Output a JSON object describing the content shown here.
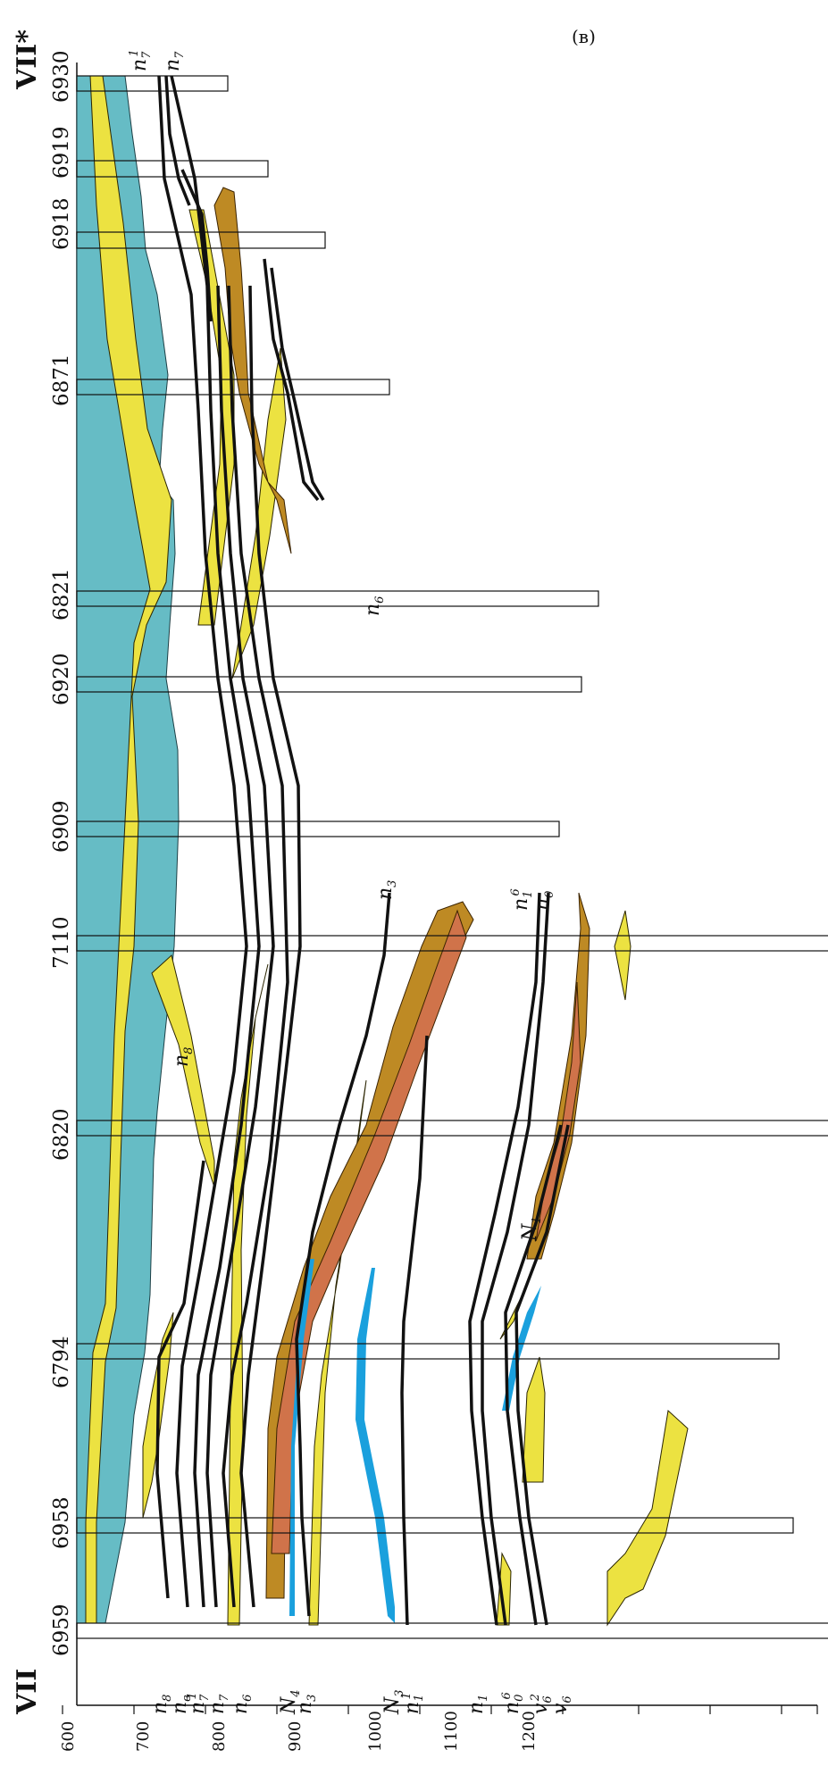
{
  "panel_label": "(в)",
  "section": {
    "start_label": "VII",
    "end_label": "VII*"
  },
  "depth_axis": {
    "ticks": [
      "600",
      "700",
      "800",
      "900",
      "1000",
      "1100",
      "1200"
    ]
  },
  "wells": [
    "6959",
    "6958",
    "6794",
    "6820",
    "7110",
    "6909",
    "6920",
    "6821",
    "6871",
    "6918",
    "6919",
    "6930"
  ],
  "colors": {
    "sediment": "#66bcc5",
    "sandstone": "#ece241",
    "coal_brown": "#be8a24",
    "coal_red": "#d0734a",
    "water": "#1aa0dd",
    "seam": "#111111"
  },
  "left_labels": [
    {
      "main": "n",
      "sub": "8"
    },
    {
      "main": "n",
      "sub": "в"
    },
    {
      "main": "n",
      "sub": "7",
      "sup": "1"
    },
    {
      "main": "n",
      "sub": "7"
    },
    {
      "main": "n",
      "sub": "6"
    },
    {
      "main": "N",
      "sub": "4"
    },
    {
      "main": "n",
      "sub": "3"
    },
    {
      "main": "N",
      "sub": "3"
    },
    {
      "main": "n",
      "sub": "1",
      "sup": "1"
    },
    {
      "main": "n",
      "sub": "1"
    },
    {
      "main": "n",
      "sub": "0",
      "sup": "6"
    },
    {
      "main": "v",
      "sub": "6",
      "sup": "2"
    },
    {
      "main": "v",
      "sub": "6"
    }
  ],
  "inner_labels": [
    {
      "main": "n",
      "sub": "8"
    },
    {
      "main": "N",
      "sub": "1"
    },
    {
      "main": "n",
      "sub": "3"
    },
    {
      "main": "n",
      "sub": "1",
      "sup": "6"
    },
    {
      "main": "n",
      "sub": "0"
    },
    {
      "main": "n",
      "sub": "6"
    },
    {
      "main": "n",
      "sub": "7",
      "sup": "1"
    },
    {
      "main": "n",
      "sub": "7"
    }
  ]
}
